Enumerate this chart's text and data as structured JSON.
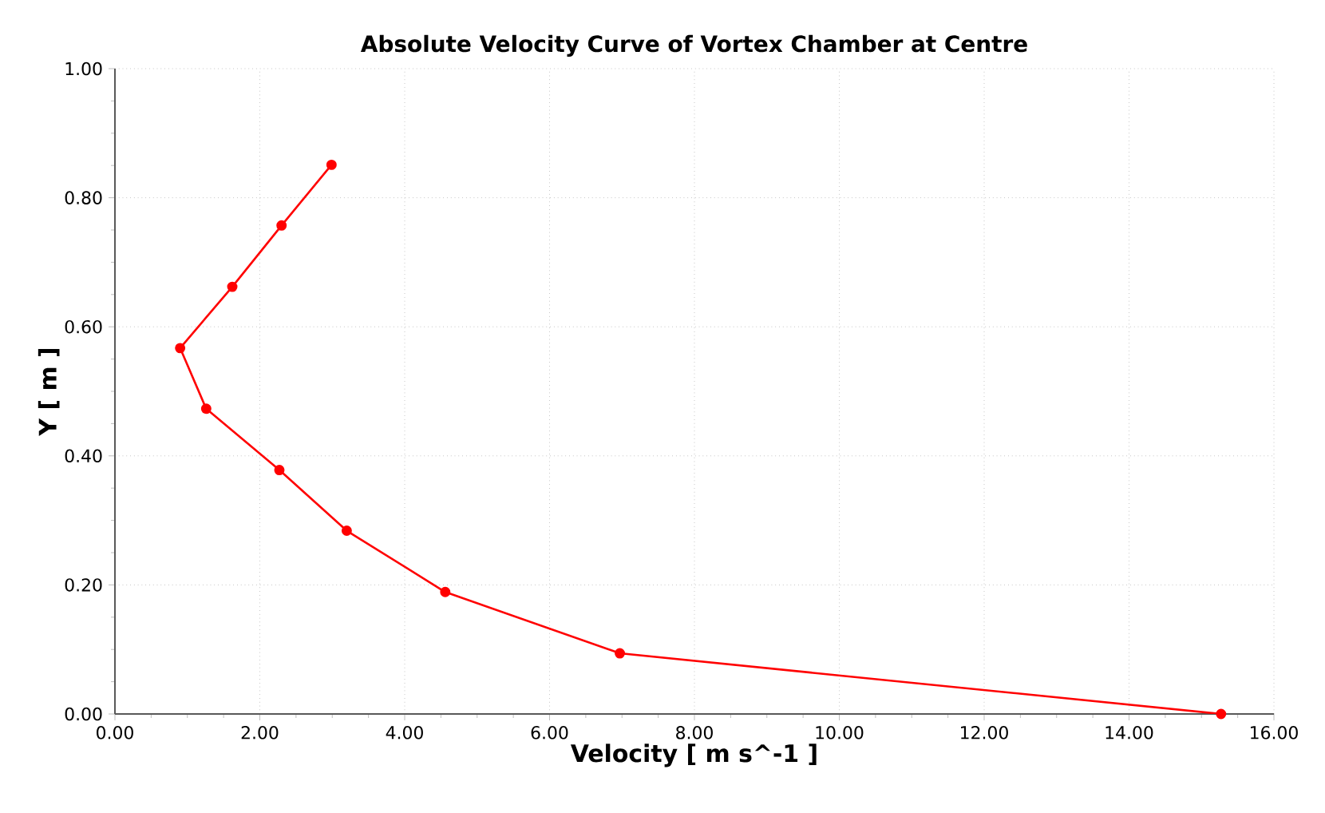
{
  "chart_data": {
    "type": "line",
    "title": "Absolute Velocity Curve of Vortex Chamber at Centre",
    "xlabel": "Velocity [ m s^-1 ]",
    "ylabel": "Y [ m ]",
    "series": [
      {
        "color": "#ff0000",
        "x": [
          15.27,
          6.97,
          4.56,
          3.2,
          2.27,
          1.26,
          0.9,
          1.62,
          2.3,
          2.99
        ],
        "values": [
          0.0,
          0.094,
          0.189,
          0.284,
          0.378,
          0.473,
          0.567,
          0.662,
          0.757,
          0.851
        ]
      }
    ],
    "xlim": [
      0,
      16
    ],
    "ylim": [
      0,
      1
    ],
    "xticks": [
      {
        "value": 0,
        "label": "0.00"
      },
      {
        "value": 2,
        "label": "2.00"
      },
      {
        "value": 4,
        "label": "4.00"
      },
      {
        "value": 6,
        "label": "6.00"
      },
      {
        "value": 8,
        "label": "8.00"
      },
      {
        "value": 10,
        "label": "10.00"
      },
      {
        "value": 12,
        "label": "12.00"
      },
      {
        "value": 14,
        "label": "14.00"
      },
      {
        "value": 16,
        "label": "16.00"
      }
    ],
    "yticks": [
      {
        "value": 0,
        "label": "0.00"
      },
      {
        "value": 0.2,
        "label": "0.20"
      },
      {
        "value": 0.4,
        "label": "0.40"
      },
      {
        "value": 0.6,
        "label": "0.60"
      },
      {
        "value": 0.8,
        "label": "0.80"
      },
      {
        "value": 1.0,
        "label": "1.00"
      }
    ],
    "grid": true,
    "marker": "circle",
    "line_style": "solid"
  }
}
